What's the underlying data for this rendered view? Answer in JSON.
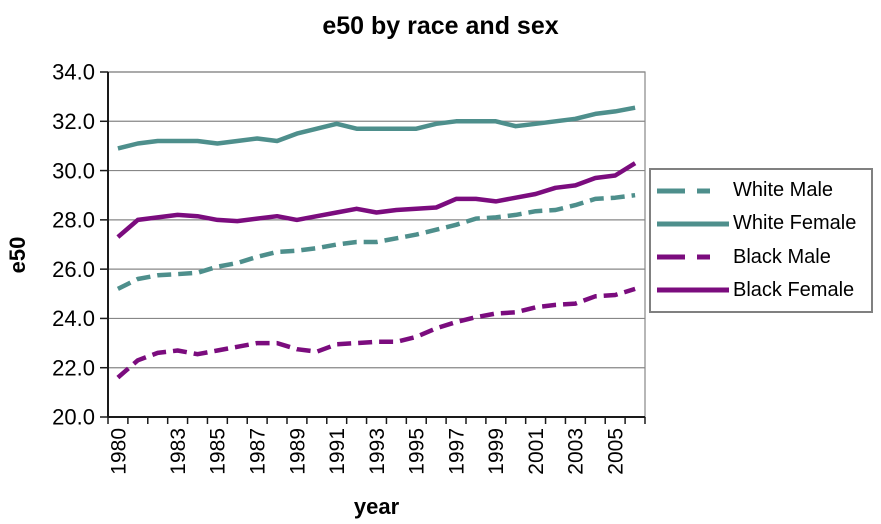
{
  "title": "e50 by race and sex",
  "chart_data": {
    "type": "line",
    "title": "e50 by race and sex",
    "xlabel": "year",
    "ylabel": "e50",
    "ylim": [
      20.0,
      34.0
    ],
    "y_tick_step": 2.0,
    "y_tick_labels": [
      "34.0",
      "32.0",
      "30.0",
      "28.0",
      "26.0",
      "24.0",
      "22.0",
      "20.0"
    ],
    "x_categories": [
      1980,
      1981,
      1982,
      1983,
      1984,
      1985,
      1986,
      1987,
      1988,
      1989,
      1990,
      1991,
      1992,
      1993,
      1994,
      1995,
      1996,
      1997,
      1998,
      1999,
      2000,
      2001,
      2002,
      2003,
      2004,
      2005,
      2006
    ],
    "x_tick_labels": [
      "1980",
      "1983",
      "1985",
      "1987",
      "1989",
      "1991",
      "1993",
      "1995",
      "1997",
      "1999",
      "2001",
      "2003",
      "2005"
    ],
    "grid": "horizontal",
    "gridline_color": "#878787",
    "legend_position": "right",
    "series": [
      {
        "name": "White Male",
        "color": "#4E8F8C",
        "dash": "dashed",
        "values": [
          25.2,
          25.6,
          25.75,
          25.8,
          25.85,
          26.1,
          26.25,
          26.5,
          26.7,
          26.75,
          26.85,
          27.0,
          27.1,
          27.1,
          27.25,
          27.4,
          27.6,
          27.8,
          28.05,
          28.1,
          28.2,
          28.35,
          28.4,
          28.6,
          28.85,
          28.9,
          29.0
        ]
      },
      {
        "name": "White Female",
        "color": "#4E8F8C",
        "dash": "solid",
        "values": [
          30.9,
          31.1,
          31.2,
          31.2,
          31.2,
          31.1,
          31.2,
          31.3,
          31.2,
          31.5,
          31.7,
          31.9,
          31.7,
          31.7,
          31.7,
          31.7,
          31.9,
          32.0,
          32.0,
          32.0,
          31.8,
          31.9,
          32.0,
          32.1,
          32.3,
          32.4,
          32.55
        ]
      },
      {
        "name": "Black Male",
        "color": "#7B0C7E",
        "dash": "dashed",
        "values": [
          21.6,
          22.3,
          22.6,
          22.7,
          22.55,
          22.7,
          22.85,
          23.0,
          23.0,
          22.75,
          22.65,
          22.95,
          23.0,
          23.05,
          23.05,
          23.25,
          23.6,
          23.85,
          24.05,
          24.2,
          24.25,
          24.45,
          24.55,
          24.6,
          24.9,
          24.95,
          25.2
        ]
      },
      {
        "name": "Black Female",
        "color": "#7B0C7E",
        "dash": "solid",
        "values": [
          27.3,
          28.0,
          28.1,
          28.2,
          28.15,
          28.0,
          27.95,
          28.05,
          28.15,
          28.0,
          28.15,
          28.3,
          28.45,
          28.3,
          28.4,
          28.45,
          28.5,
          28.85,
          28.85,
          28.75,
          28.9,
          29.05,
          29.3,
          29.4,
          29.7,
          29.8,
          30.3
        ]
      }
    ]
  }
}
